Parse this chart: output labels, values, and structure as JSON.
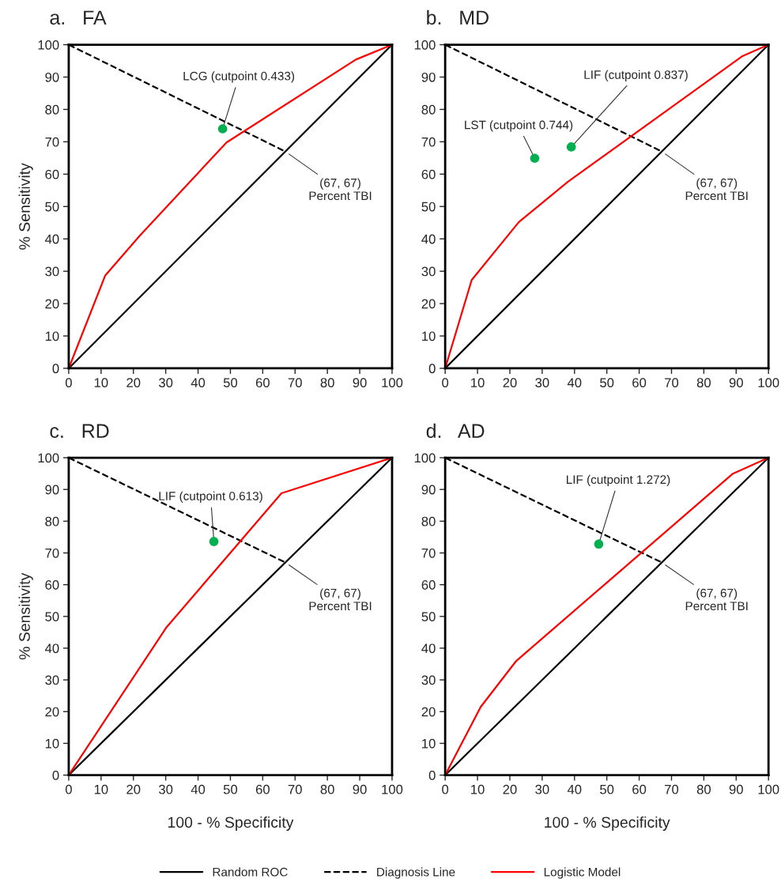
{
  "chart_data": [
    {
      "type": "line",
      "title": "a.   FA",
      "ylabel": "% Sensitivity",
      "xlim": [
        0,
        100
      ],
      "ylim": [
        0,
        100
      ],
      "xticks": [
        0,
        10,
        20,
        30,
        40,
        50,
        60,
        70,
        80,
        90,
        100
      ],
      "yticks": [
        0,
        10,
        20,
        30,
        40,
        50,
        60,
        70,
        80,
        90,
        100
      ],
      "grid": false,
      "legend": "bottom",
      "series": [
        {
          "name": "Random ROC",
          "color": "#000000",
          "line_style": "solid",
          "x": [
            0,
            100
          ],
          "values": [
            0,
            100
          ]
        },
        {
          "name": "Diagnosis Line",
          "color": "#000000",
          "line_style": "dashed",
          "x": [
            0,
            67
          ],
          "values": [
            100,
            67
          ]
        },
        {
          "name": "Logistic Model",
          "color": "#ff0000",
          "line_style": "solid",
          "x": [
            0,
            11.3,
            21.9,
            48.8,
            88.8,
            100
          ],
          "values": [
            0,
            28.7,
            40.9,
            69.8,
            95.4,
            100
          ]
        },
        {
          "type": "scatter",
          "color": "#00b050",
          "marker": "circle",
          "x": [
            47.6
          ],
          "values": [
            74
          ]
        }
      ],
      "annotations": [
        {
          "text": "LCG (cutpoint 0.433)",
          "x": 47.6,
          "y": 74
        },
        {
          "text": "(67, 67)\nPercent TBI",
          "x": 67,
          "y": 67
        }
      ]
    },
    {
      "type": "line",
      "title": "b.   MD",
      "xlim": [
        0,
        100
      ],
      "ylim": [
        0,
        100
      ],
      "xticks": [
        0,
        10,
        20,
        30,
        40,
        50,
        60,
        70,
        80,
        90,
        100
      ],
      "yticks": [
        0,
        10,
        20,
        30,
        40,
        50,
        60,
        70,
        80,
        90,
        100
      ],
      "grid": false,
      "series": [
        {
          "color": "#000000",
          "line_style": "solid",
          "x": [
            0,
            100
          ],
          "values": [
            0,
            100
          ]
        },
        {
          "color": "#000000",
          "line_style": "dashed",
          "x": [
            0,
            67
          ],
          "values": [
            100,
            67
          ]
        },
        {
          "color": "#ff0000",
          "line_style": "solid",
          "x": [
            0,
            8.2,
            22.8,
            37.9,
            91.8,
            100
          ],
          "values": [
            0,
            27.3,
            45.2,
            57.6,
            96.4,
            100
          ]
        },
        {
          "type": "scatter",
          "color": "#00b050",
          "marker": "circle",
          "x": [
            27.7,
            39.0
          ],
          "values": [
            64.9,
            68.4
          ]
        }
      ],
      "annotations": [
        {
          "text": "LST (cutpoint 0.744)",
          "x": 27.7,
          "y": 64.9
        },
        {
          "text": "LIF (cutpoint 0.837)",
          "x": 39.0,
          "y": 68.4
        },
        {
          "text": "(67, 67)\nPercent TBI",
          "x": 67,
          "y": 67
        }
      ]
    },
    {
      "type": "line",
      "title": "c.   RD",
      "xlabel": "100 - % Specificity",
      "ylabel": "% Sensitivity",
      "xlim": [
        0,
        100
      ],
      "ylim": [
        0,
        100
      ],
      "xticks": [
        0,
        10,
        20,
        30,
        40,
        50,
        60,
        70,
        80,
        90,
        100
      ],
      "yticks": [
        0,
        10,
        20,
        30,
        40,
        50,
        60,
        70,
        80,
        90,
        100
      ],
      "grid": false,
      "series": [
        {
          "color": "#000000",
          "line_style": "solid",
          "x": [
            0,
            100
          ],
          "values": [
            0,
            100
          ]
        },
        {
          "color": "#000000",
          "line_style": "dashed",
          "x": [
            0,
            67
          ],
          "values": [
            100,
            67
          ]
        },
        {
          "color": "#ff0000",
          "line_style": "solid",
          "x": [
            0,
            30.1,
            65.8,
            100
          ],
          "values": [
            0,
            46.4,
            88.8,
            100
          ]
        },
        {
          "type": "scatter",
          "color": "#00b050",
          "marker": "circle",
          "x": [
            44.9
          ],
          "values": [
            73.6
          ]
        }
      ],
      "annotations": [
        {
          "text": "LIF (cutpoint 0.613)",
          "x": 44.9,
          "y": 73.6
        },
        {
          "text": "(67, 67)\nPercent TBI",
          "x": 67,
          "y": 67
        }
      ]
    },
    {
      "type": "line",
      "title": "d.   AD",
      "xlabel": "100 - % Specificity",
      "xlim": [
        0,
        100
      ],
      "ylim": [
        0,
        100
      ],
      "xticks": [
        0,
        10,
        20,
        30,
        40,
        50,
        60,
        70,
        80,
        90,
        100
      ],
      "yticks": [
        0,
        10,
        20,
        30,
        40,
        50,
        60,
        70,
        80,
        90,
        100
      ],
      "grid": false,
      "series": [
        {
          "color": "#000000",
          "line_style": "solid",
          "x": [
            0,
            100
          ],
          "values": [
            0,
            100
          ]
        },
        {
          "color": "#000000",
          "line_style": "dashed",
          "x": [
            0,
            67
          ],
          "values": [
            100,
            67
          ]
        },
        {
          "color": "#ff0000",
          "line_style": "solid",
          "x": [
            0,
            11,
            22,
            89,
            100
          ],
          "values": [
            0,
            21.5,
            36,
            95,
            100
          ]
        },
        {
          "type": "scatter",
          "color": "#00b050",
          "marker": "circle",
          "x": [
            47.5
          ],
          "values": [
            72.8
          ]
        }
      ],
      "annotations": [
        {
          "text": "LIF (cutpoint 1.272)",
          "x": 47.5,
          "y": 72.8
        },
        {
          "text": "(67, 67)\nPercent TBI",
          "x": 67,
          "y": 67
        }
      ]
    }
  ]
}
